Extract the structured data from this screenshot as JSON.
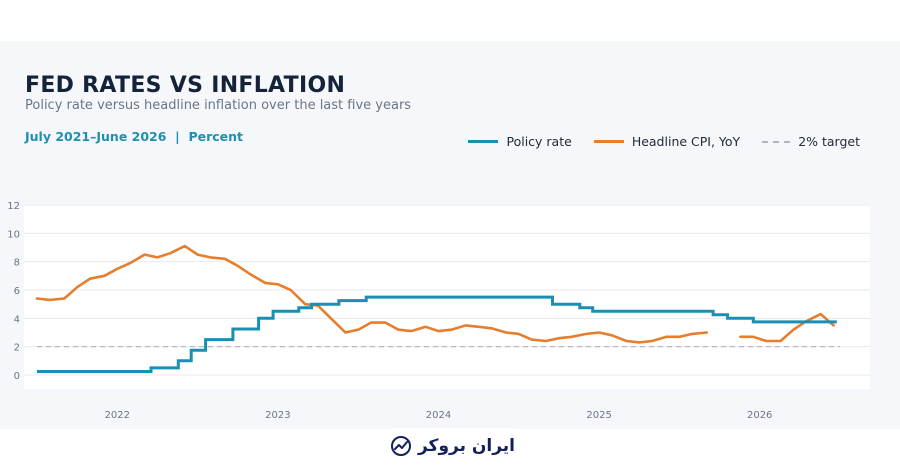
{
  "chart_data": {
    "type": "line",
    "title": "FED RATES VS INFLATION",
    "subtitle": "Policy rate versus headline inflation over the last five years",
    "period": "July 2021–June 2026",
    "unit": "Percent",
    "meta_separator": "|",
    "ylim": [
      0,
      12
    ],
    "y_ticks": [
      "0",
      "2",
      "4",
      "6",
      "8",
      "10",
      "12"
    ],
    "x_range": [
      2021.5,
      2026.5
    ],
    "x_ticks": [
      {
        "label": "2022",
        "value": 2022.0
      },
      {
        "label": "2023",
        "value": 2023.0
      },
      {
        "label": "2024",
        "value": 2024.0
      },
      {
        "label": "2025",
        "value": 2025.0
      },
      {
        "label": "2026",
        "value": 2026.0
      }
    ],
    "grid": true,
    "legend_position": "top-right",
    "series": [
      {
        "name": "Policy rate",
        "color": "#1b8fb3",
        "style": "step",
        "points": [
          [
            2021.5,
            0.25
          ],
          [
            2022.21,
            0.5
          ],
          [
            2022.38,
            1.0
          ],
          [
            2022.46,
            1.75
          ],
          [
            2022.55,
            2.5
          ],
          [
            2022.72,
            3.25
          ],
          [
            2022.88,
            4.0
          ],
          [
            2022.97,
            4.5
          ],
          [
            2023.13,
            4.75
          ],
          [
            2023.21,
            5.0
          ],
          [
            2023.38,
            5.25
          ],
          [
            2023.55,
            5.5
          ],
          [
            2024.71,
            5.0
          ],
          [
            2024.88,
            4.75
          ],
          [
            2024.96,
            4.5
          ],
          [
            2025.71,
            4.25
          ],
          [
            2025.8,
            4.0
          ],
          [
            2025.96,
            3.75
          ],
          [
            2026.48,
            3.75
          ]
        ]
      },
      {
        "name": "Headline CPI, YoY",
        "color": "#e67e2e",
        "style": "line",
        "segments": [
          [
            [
              2021.5,
              5.4
            ],
            [
              2021.58,
              5.3
            ],
            [
              2021.67,
              5.4
            ],
            [
              2021.75,
              6.2
            ],
            [
              2021.83,
              6.8
            ],
            [
              2021.92,
              7.0
            ],
            [
              2022.0,
              7.5
            ],
            [
              2022.08,
              7.9
            ],
            [
              2022.17,
              8.5
            ],
            [
              2022.25,
              8.3
            ],
            [
              2022.33,
              8.6
            ],
            [
              2022.42,
              9.1
            ],
            [
              2022.5,
              8.5
            ],
            [
              2022.58,
              8.3
            ],
            [
              2022.67,
              8.2
            ],
            [
              2022.75,
              7.7
            ],
            [
              2022.83,
              7.1
            ],
            [
              2022.92,
              6.5
            ],
            [
              2023.0,
              6.4
            ],
            [
              2023.08,
              6.0
            ],
            [
              2023.17,
              5.0
            ],
            [
              2023.25,
              4.9
            ],
            [
              2023.33,
              4.0
            ],
            [
              2023.42,
              3.0
            ],
            [
              2023.5,
              3.2
            ],
            [
              2023.58,
              3.7
            ],
            [
              2023.67,
              3.7
            ],
            [
              2023.75,
              3.2
            ],
            [
              2023.83,
              3.1
            ],
            [
              2023.92,
              3.4
            ],
            [
              2024.0,
              3.1
            ],
            [
              2024.08,
              3.2
            ],
            [
              2024.17,
              3.5
            ],
            [
              2024.25,
              3.4
            ],
            [
              2024.33,
              3.3
            ],
            [
              2024.42,
              3.0
            ],
            [
              2024.5,
              2.9
            ],
            [
              2024.58,
              2.5
            ],
            [
              2024.67,
              2.4
            ],
            [
              2024.75,
              2.6
            ],
            [
              2024.83,
              2.7
            ],
            [
              2024.92,
              2.9
            ],
            [
              2025.0,
              3.0
            ],
            [
              2025.08,
              2.8
            ],
            [
              2025.17,
              2.4
            ],
            [
              2025.25,
              2.3
            ],
            [
              2025.33,
              2.4
            ],
            [
              2025.42,
              2.7
            ],
            [
              2025.5,
              2.7
            ],
            [
              2025.58,
              2.9
            ],
            [
              2025.67,
              3.0
            ]
          ],
          [
            [
              2025.88,
              2.7
            ],
            [
              2025.96,
              2.7
            ],
            [
              2026.04,
              2.4
            ],
            [
              2026.13,
              2.4
            ],
            [
              2026.21,
              3.2
            ],
            [
              2026.29,
              3.8
            ],
            [
              2026.38,
              4.3
            ],
            [
              2026.46,
              3.5
            ]
          ]
        ]
      },
      {
        "name": "2% target",
        "color": "#aeb6c2",
        "style": "dashed",
        "value": 2
      }
    ]
  },
  "brand": {
    "name": "ایران بروکر"
  }
}
